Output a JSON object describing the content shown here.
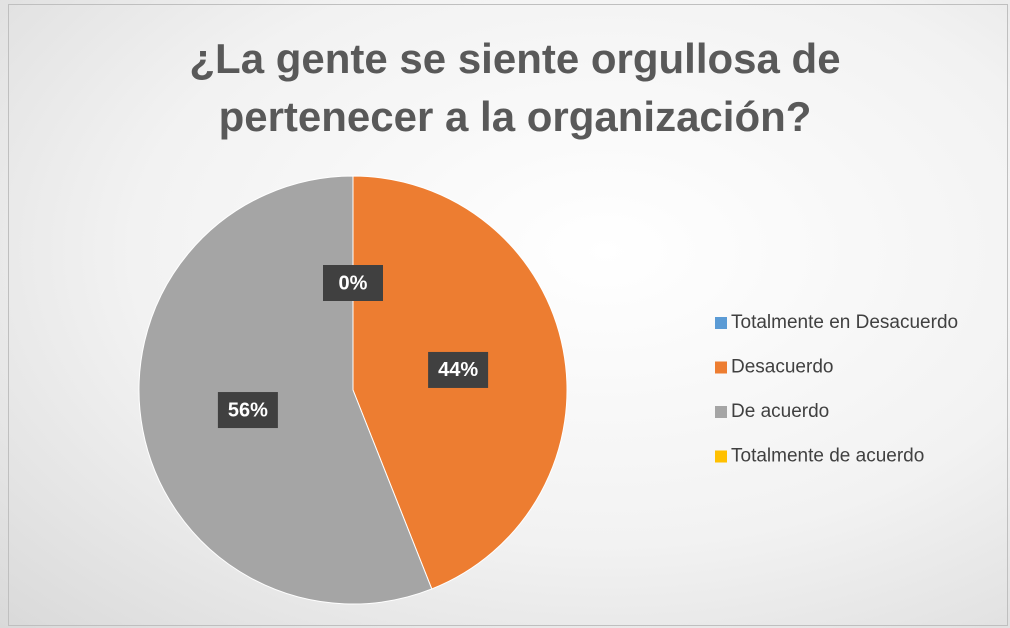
{
  "chart_data": {
    "type": "pie",
    "title": "¿La gente se siente orgullosa de pertenecer a la organización?",
    "categories": [
      "Totalmente en Desacuerdo",
      "Desacuerdo",
      "De acuerdo",
      "Totalmente de acuerdo"
    ],
    "values": [
      0,
      44,
      56,
      0
    ],
    "value_labels": [
      "0%",
      "44%",
      "56%",
      null
    ],
    "colors": [
      "#5b9bd5",
      "#ed7d31",
      "#a5a5a5",
      "#ffc000"
    ],
    "legend": "right"
  }
}
